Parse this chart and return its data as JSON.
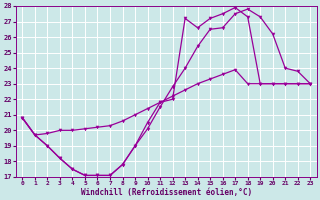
{
  "xlabel": "Windchill (Refroidissement éolien,°C)",
  "bg_color": "#cce8e8",
  "grid_color": "#ffffff",
  "line_color": "#990099",
  "xlim": [
    -0.5,
    23.5
  ],
  "ylim": [
    17,
    28
  ],
  "xticks": [
    0,
    1,
    2,
    3,
    4,
    5,
    6,
    7,
    8,
    9,
    10,
    11,
    12,
    13,
    14,
    15,
    16,
    17,
    18,
    19,
    20,
    21,
    22,
    23
  ],
  "yticks": [
    17,
    18,
    19,
    20,
    21,
    22,
    23,
    24,
    25,
    26,
    27,
    28
  ],
  "line1_x": [
    0,
    1,
    2,
    3,
    4,
    5,
    6,
    7,
    8,
    9,
    10,
    11,
    12,
    13,
    14,
    15,
    16,
    17,
    18,
    19,
    20,
    21,
    22,
    23
  ],
  "line1_y": [
    20.8,
    19.7,
    19.0,
    18.2,
    17.5,
    17.1,
    17.1,
    17.1,
    17.8,
    19.0,
    20.1,
    21.5,
    22.8,
    24.0,
    25.4,
    26.5,
    26.6,
    27.5,
    27.8,
    27.3,
    26.2,
    24.0,
    23.8,
    23.0
  ],
  "line2_x": [
    0,
    1,
    2,
    3,
    4,
    5,
    6,
    7,
    8,
    9,
    10,
    11,
    12,
    13,
    14,
    15,
    16,
    17,
    18,
    19,
    20,
    21,
    22,
    23
  ],
  "line2_y": [
    20.8,
    19.7,
    19.8,
    20.0,
    20.0,
    20.1,
    20.2,
    20.3,
    20.6,
    21.0,
    21.4,
    21.8,
    22.2,
    22.6,
    23.0,
    23.3,
    23.6,
    23.9,
    23.0,
    23.0,
    23.0,
    23.0,
    23.0,
    23.0
  ],
  "line3_x": [
    0,
    1,
    2,
    3,
    4,
    5,
    6,
    7,
    8,
    9,
    10,
    11,
    12,
    13,
    14,
    15,
    16,
    17,
    18,
    19,
    20,
    21,
    22,
    23
  ],
  "line3_y": [
    20.8,
    19.7,
    19.0,
    18.2,
    17.5,
    17.1,
    17.1,
    17.1,
    17.8,
    19.0,
    20.5,
    21.8,
    22.0,
    27.2,
    26.6,
    27.2,
    27.5,
    27.9,
    27.3,
    23.0,
    23.0,
    23.0,
    23.0,
    23.0
  ]
}
